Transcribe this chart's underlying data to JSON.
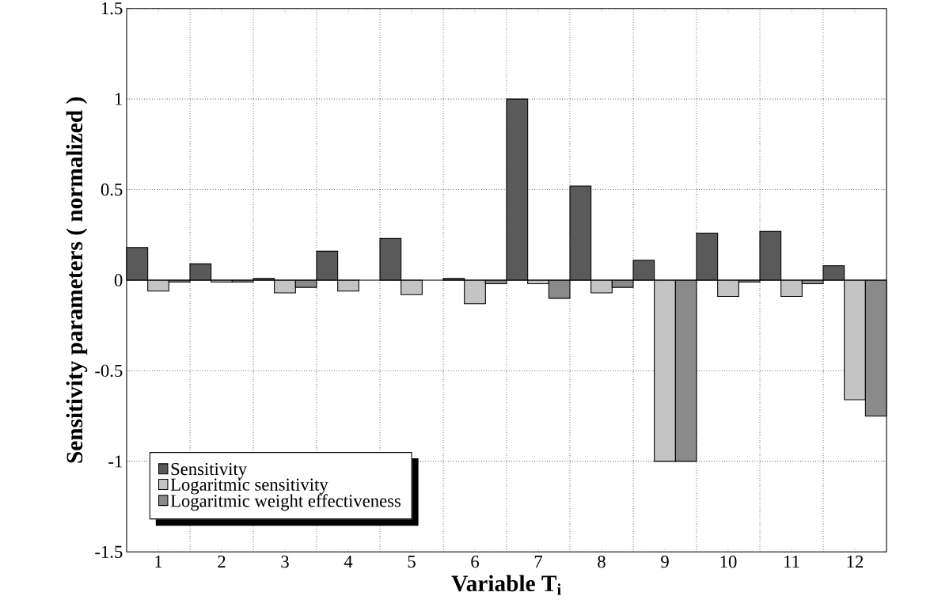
{
  "chart_data": {
    "type": "bar",
    "xlabel": "Variable T$_{i}$",
    "ylabel": "Sensitivity parameters ( normalized )",
    "categories": [
      "1",
      "2",
      "3",
      "4",
      "5",
      "6",
      "7",
      "8",
      "9",
      "10",
      "11",
      "12"
    ],
    "series": [
      {
        "name": "Sensitivity",
        "color": "#5a5a5a",
        "values": [
          0.18,
          0.09,
          0.01,
          0.16,
          0.23,
          0.01,
          1.0,
          0.52,
          0.11,
          0.26,
          0.27,
          0.08
        ]
      },
      {
        "name": "Logaritmic sensitivity",
        "color": "#c4c4c4",
        "values": [
          -0.06,
          -0.01,
          -0.07,
          -0.06,
          -0.08,
          -0.13,
          -0.02,
          -0.07,
          -1.0,
          -0.09,
          -0.09,
          -0.66
        ]
      },
      {
        "name": "Logaritmic weight effectiveness",
        "color": "#8a8a8a",
        "values": [
          -0.01,
          -0.01,
          -0.04,
          null,
          null,
          -0.02,
          -0.1,
          -0.04,
          -1.0,
          -0.01,
          -0.02,
          -0.75
        ]
      }
    ],
    "ylim": [
      -1.5,
      1.5
    ],
    "yticks": [
      -1.5,
      -1,
      -0.5,
      0,
      0.5,
      1,
      1.5
    ],
    "grid": true,
    "legend": "bottom left"
  }
}
